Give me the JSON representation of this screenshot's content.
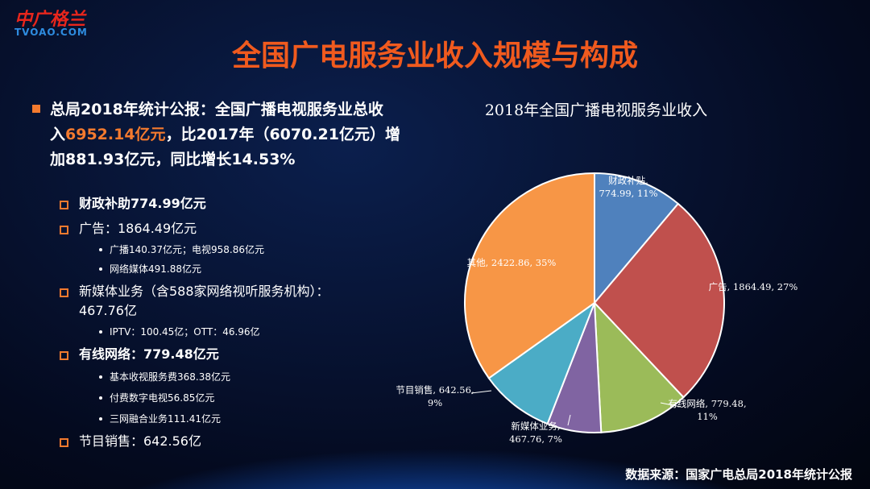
{
  "logo": {
    "name": "中广格兰",
    "site": "TVOAO.COM"
  },
  "title": "全国广电服务业收入规模与构成",
  "intro": [
    [
      {
        "text": "总局2018年统计公报：全国广播电视服务业总收",
        "highlight": false
      }
    ],
    [
      {
        "text": "入",
        "highlight": false
      },
      {
        "text": "6952.14亿元",
        "highlight": true
      },
      {
        "text": "，比2017年（6070.21亿元）增",
        "highlight": false
      }
    ],
    [
      {
        "text": "加881.93亿元，同比增长14.53%",
        "highlight": false
      }
    ]
  ],
  "items": [
    {
      "level": 1,
      "highlight": true,
      "lines": [
        "财政补助774.99亿元"
      ]
    },
    {
      "level": 1,
      "highlight": false,
      "lines": [
        "广告：1864.49亿元"
      ]
    },
    {
      "level": 2,
      "highlight": true,
      "lines": [
        "广播140.37亿元；电视958.86亿元"
      ]
    },
    {
      "level": 2,
      "highlight": false,
      "lines": [
        "网络媒体491.88亿元"
      ]
    },
    {
      "level": 1,
      "highlight": false,
      "lines": [
        "新媒体业务（含588家网络视听服务机构）：",
        "467.76亿"
      ]
    },
    {
      "level": 2,
      "highlight": false,
      "lines": [
        "IPTV：100.45亿；OTT：46.96亿"
      ]
    },
    {
      "level": 1,
      "highlight": true,
      "lines": [
        "有线网络：779.48亿元"
      ]
    },
    {
      "level": 2,
      "highlight": false,
      "lines": [
        "基本收视服务费368.38亿元"
      ]
    },
    {
      "level": 2,
      "highlight": false,
      "lines": [
        "付费数字电视56.85亿元"
      ]
    },
    {
      "level": 2,
      "highlight": false,
      "lines": [
        "三网融合业务111.41亿元"
      ]
    },
    {
      "level": 1,
      "highlight": false,
      "lines": [
        "节目销售：642.56亿"
      ]
    }
  ],
  "chart_data": {
    "type": "pie",
    "title": "2018年全国广播电视服务业收入",
    "values": [
      774.99,
      1864.49,
      779.48,
      467.76,
      642.56,
      2422.86
    ],
    "value_labels": [
      [
        "财政补贴,",
        "774.99, 11%"
      ],
      [
        "广告, 1864.49, 27%"
      ],
      [
        "有线网络, 779.48,",
        "11%"
      ],
      [
        "新媒体业务,",
        "467.76, 7%"
      ],
      [
        "节目销售, 642.56,",
        "9%"
      ],
      [
        "其他, 2422.86, 35%"
      ]
    ],
    "colors": [
      "#4f81bd",
      "#c0504d",
      "#9bbb59",
      "#8064a2",
      "#4bacc6",
      "#f79646"
    ]
  },
  "source": "数据来源：国家广电总局2018年统计公报"
}
